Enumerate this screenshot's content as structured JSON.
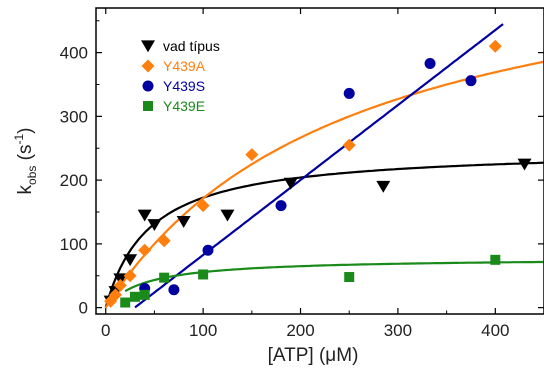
{
  "chart_data": {
    "type": "scatter",
    "xlabel_main": "[ATP] (",
    "xlabel_unit": "μM)",
    "ylabel_k": "k",
    "ylabel_sub": "obs",
    "ylabel_open": " (s",
    "ylabel_sup": "-1",
    "ylabel_close": ")",
    "xlim": [
      -10,
      450
    ],
    "ylim": [
      -10,
      470
    ],
    "xticks": [
      0,
      100,
      200,
      300,
      400
    ],
    "yticks": [
      0,
      100,
      200,
      300,
      400
    ],
    "legend_position": "top-left",
    "series": [
      {
        "name": "vad típus",
        "color": "#000000",
        "marker": "triangle-down",
        "points": [
          [
            5,
            10
          ],
          [
            10,
            25
          ],
          [
            15,
            45
          ],
          [
            25,
            75
          ],
          [
            40,
            145
          ],
          [
            50,
            130
          ],
          [
            80,
            135
          ],
          [
            125,
            145
          ],
          [
            190,
            195
          ],
          [
            285,
            190
          ],
          [
            430,
            225
          ]
        ],
        "fit": {
          "model": "hyperbolic",
          "vmax": 250,
          "km": 45,
          "x_start": 0,
          "x_end": 450
        }
      },
      {
        "name": "Y439A",
        "color": "#ff7f0e",
        "marker": "diamond",
        "points": [
          [
            5,
            10
          ],
          [
            10,
            20
          ],
          [
            15,
            35
          ],
          [
            25,
            50
          ],
          [
            40,
            90
          ],
          [
            60,
            105
          ],
          [
            100,
            160
          ],
          [
            150,
            240
          ],
          [
            250,
            255
          ],
          [
            400,
            410
          ]
        ],
        "fit": {
          "model": "hyperbolic",
          "vmax": 600,
          "km": 250,
          "x_start": 0,
          "x_end": 450
        }
      },
      {
        "name": "Y439S",
        "color": "#0000a0",
        "marker": "circle",
        "points": [
          [
            40,
            30
          ],
          [
            70,
            28
          ],
          [
            105,
            90
          ],
          [
            180,
            160
          ],
          [
            250,
            336
          ],
          [
            333,
            383
          ],
          [
            375,
            356
          ]
        ],
        "fit": {
          "model": "linear",
          "slope": 1.176,
          "intercept": -35,
          "x_start": 30,
          "x_end": 408
        }
      },
      {
        "name": "Y439E",
        "color": "#1a8a1a",
        "marker": "square",
        "points": [
          [
            20,
            8
          ],
          [
            30,
            17
          ],
          [
            40,
            20
          ],
          [
            60,
            47
          ],
          [
            100,
            52
          ],
          [
            250,
            48
          ],
          [
            400,
            75
          ]
        ],
        "fit": {
          "model": "hyperbolic",
          "vmax": 78,
          "km": 40,
          "x_start": 20,
          "x_end": 450
        }
      }
    ]
  }
}
